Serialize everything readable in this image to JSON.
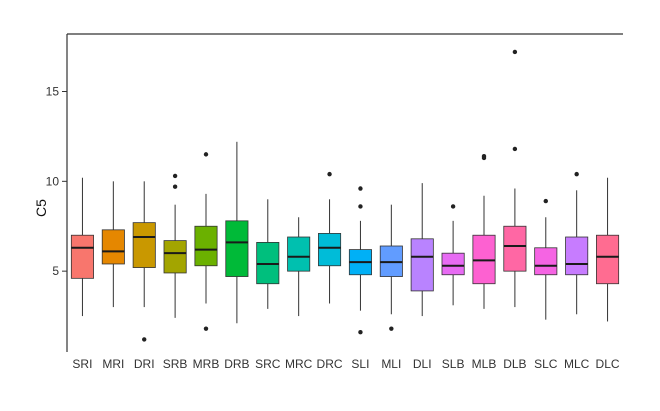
{
  "chart_data": {
    "type": "box",
    "title": "",
    "xlabel": "",
    "ylabel": "C5",
    "ylim": [
      0.5,
      18.2
    ],
    "yticks": [
      5,
      10,
      15
    ],
    "grid": false,
    "legend": "none",
    "categories": [
      "SRI",
      "MRI",
      "DRI",
      "SRB",
      "MRB",
      "DRB",
      "SRC",
      "MRC",
      "DRC",
      "SLI",
      "MLI",
      "DLI",
      "SLB",
      "MLB",
      "DLB",
      "SLC",
      "MLC",
      "DLC"
    ],
    "colors": [
      "#F8766D",
      "#E58700",
      "#C99800",
      "#A3A500",
      "#6BB100",
      "#00BA38",
      "#00BF7D",
      "#00C0AF",
      "#00BCD8",
      "#00B0F6",
      "#619CFF",
      "#B983FF",
      "#E76BF3",
      "#FD61D1",
      "#FF67A4",
      "#F564E3",
      "#C77CFF",
      "#FF6C91"
    ],
    "boxes": [
      {
        "min": 2.5,
        "q1": 4.6,
        "median": 6.3,
        "q3": 7.0,
        "max": 10.2,
        "outliers": []
      },
      {
        "min": 3.0,
        "q1": 5.4,
        "median": 6.1,
        "q3": 7.3,
        "max": 10.0,
        "outliers": []
      },
      {
        "min": 3.0,
        "q1": 5.2,
        "median": 6.9,
        "q3": 7.7,
        "max": 10.0,
        "outliers": [
          1.2
        ]
      },
      {
        "min": 2.4,
        "q1": 4.9,
        "median": 6.0,
        "q3": 6.7,
        "max": 8.7,
        "outliers": [
          9.7,
          10.3
        ]
      },
      {
        "min": 3.2,
        "q1": 5.3,
        "median": 6.2,
        "q3": 7.5,
        "max": 9.3,
        "outliers": [
          1.8,
          11.5
        ]
      },
      {
        "min": 2.1,
        "q1": 4.7,
        "median": 6.6,
        "q3": 7.8,
        "max": 12.2,
        "outliers": []
      },
      {
        "min": 2.9,
        "q1": 4.3,
        "median": 5.4,
        "q3": 6.6,
        "max": 9.0,
        "outliers": []
      },
      {
        "min": 2.5,
        "q1": 5.0,
        "median": 5.8,
        "q3": 6.9,
        "max": 8.0,
        "outliers": []
      },
      {
        "min": 3.2,
        "q1": 5.3,
        "median": 6.3,
        "q3": 7.1,
        "max": 9.0,
        "outliers": [
          10.4
        ]
      },
      {
        "min": 2.8,
        "q1": 4.8,
        "median": 5.5,
        "q3": 6.2,
        "max": 7.8,
        "outliers": [
          1.6,
          8.6,
          9.6
        ]
      },
      {
        "min": 2.6,
        "q1": 4.7,
        "median": 5.5,
        "q3": 6.4,
        "max": 8.7,
        "outliers": [
          1.8
        ]
      },
      {
        "min": 2.5,
        "q1": 3.9,
        "median": 5.8,
        "q3": 6.8,
        "max": 9.9,
        "outliers": []
      },
      {
        "min": 3.1,
        "q1": 4.8,
        "median": 5.3,
        "q3": 6.0,
        "max": 7.8,
        "outliers": [
          8.6
        ]
      },
      {
        "min": 2.9,
        "q1": 4.3,
        "median": 5.6,
        "q3": 7.0,
        "max": 9.2,
        "outliers": [
          11.3,
          11.4
        ]
      },
      {
        "min": 3.0,
        "q1": 5.0,
        "median": 6.4,
        "q3": 7.5,
        "max": 9.6,
        "outliers": [
          11.8,
          17.2
        ]
      },
      {
        "min": 2.3,
        "q1": 4.8,
        "median": 5.3,
        "q3": 6.3,
        "max": 8.0,
        "outliers": [
          8.9
        ]
      },
      {
        "min": 2.6,
        "q1": 4.8,
        "median": 5.4,
        "q3": 6.9,
        "max": 9.5,
        "outliers": [
          10.4
        ]
      },
      {
        "min": 2.2,
        "q1": 4.3,
        "median": 5.8,
        "q3": 7.0,
        "max": 10.2,
        "outliers": []
      }
    ]
  }
}
